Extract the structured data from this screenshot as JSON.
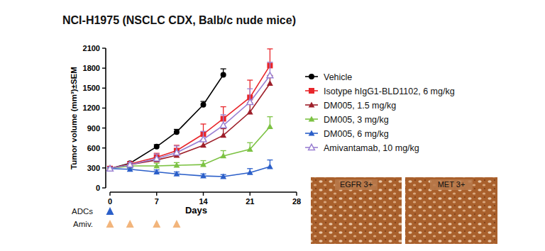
{
  "chart_data": {
    "type": "line",
    "title": "NCI-H1975 (NSCLC CDX, Balb/c nude mice)",
    "x_label": "Days",
    "y_label": "Tumor volume (mm³)±SEM",
    "x": [
      0,
      3,
      7,
      10,
      14,
      17,
      21,
      24
    ],
    "xlim": [
      0,
      28
    ],
    "xticks": [
      0,
      7,
      14,
      21,
      28
    ],
    "ylim": [
      0,
      2100
    ],
    "yticks": [
      0,
      300,
      600,
      900,
      1200,
      1500,
      1800,
      2100
    ],
    "grid": false,
    "legend": "right",
    "series": [
      {
        "name": "Vehicle",
        "color": "#000000",
        "marker": "circle",
        "values": [
          290,
          370,
          620,
          840,
          1250,
          1700,
          null,
          null
        ],
        "errors": [
          10,
          20,
          30,
          40,
          50,
          90,
          null,
          null
        ]
      },
      {
        "name": "Isotype hIgG1-BLD1102, 6 mg/kg",
        "color": "#e8262b",
        "marker": "square",
        "values": [
          290,
          360,
          460,
          560,
          810,
          1040,
          1360,
          1840
        ],
        "errors": [
          10,
          20,
          60,
          80,
          150,
          180,
          260,
          250
        ]
      },
      {
        "name": "DM005, 1.5 mg/kg",
        "color": "#9e1f2a",
        "marker": "triangle",
        "values": [
          290,
          350,
          420,
          490,
          640,
          790,
          1140,
          1570
        ],
        "errors": [
          10,
          20,
          40,
          60,
          80,
          100,
          140,
          120
        ]
      },
      {
        "name": "DM005, 3 mg/kg",
        "color": "#7cc243",
        "marker": "triangle",
        "values": [
          290,
          330,
          330,
          340,
          350,
          480,
          580,
          920
        ],
        "errors": [
          10,
          20,
          40,
          40,
          60,
          80,
          100,
          150
        ]
      },
      {
        "name": "DM005, 6 mg/kg",
        "color": "#2b5fc9",
        "marker": "triangle",
        "values": [
          290,
          280,
          240,
          210,
          180,
          170,
          230,
          320
        ],
        "errors": [
          20,
          20,
          30,
          30,
          30,
          30,
          60,
          100
        ]
      },
      {
        "name": "Amivantamab, 10 mg/kg",
        "color": "#9a80d2",
        "marker": "open-triangle",
        "values": [
          290,
          350,
          440,
          530,
          730,
          940,
          1290,
          1690
        ],
        "errors": [
          10,
          30,
          70,
          100,
          120,
          160,
          200,
          200
        ]
      }
    ],
    "dosing": [
      {
        "label": "ADCs",
        "color": "#2b5fc9",
        "days": [
          0
        ]
      },
      {
        "label": "Amiv.",
        "color": "#f2b57c",
        "days": [
          0,
          3,
          7,
          10
        ]
      }
    ],
    "annotations": [
      "EGFR 3+",
      "MET 3+"
    ]
  }
}
